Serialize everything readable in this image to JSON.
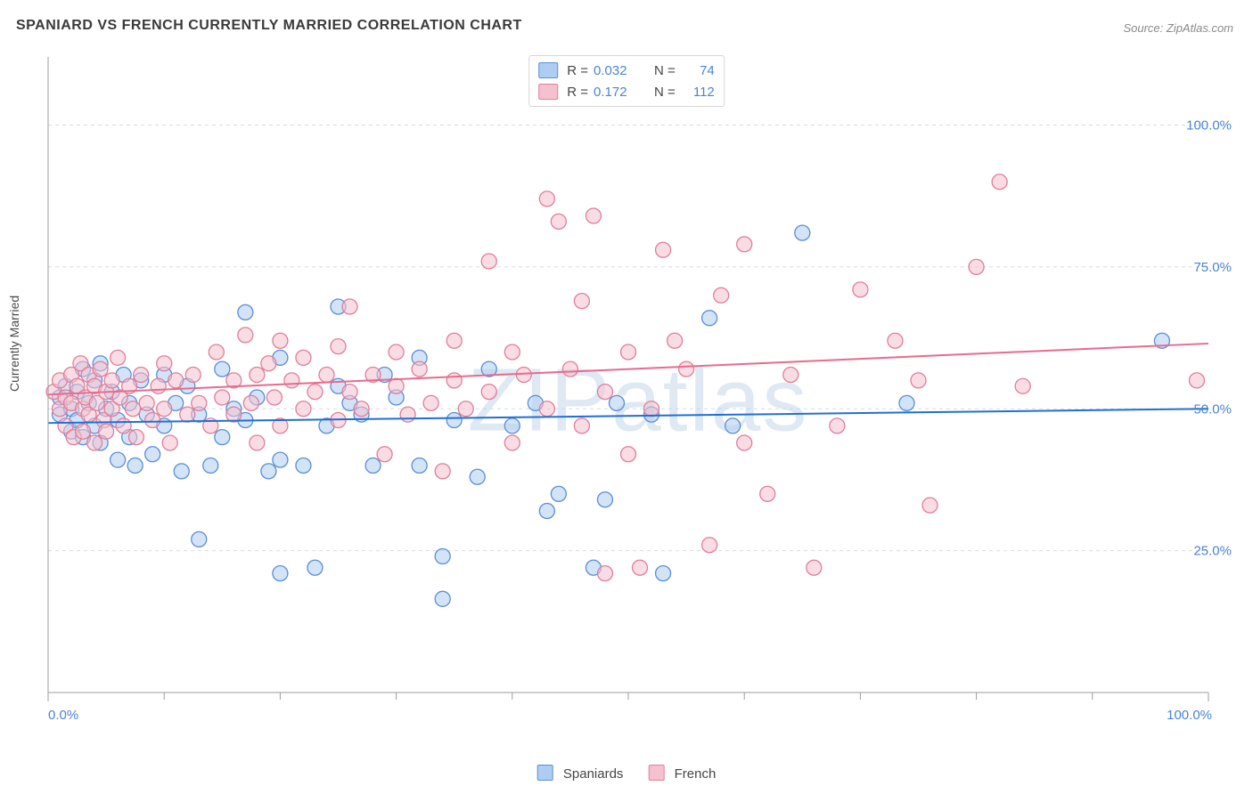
{
  "title": "SPANIARD VS FRENCH CURRENTLY MARRIED CORRELATION CHART",
  "source": "Source: ZipAtlas.com",
  "watermark": "ZIPatlas",
  "ylabel": "Currently Married",
  "chart": {
    "type": "scatter",
    "xlim": [
      0,
      100
    ],
    "ylim": [
      0,
      112
    ],
    "yticks": [
      25,
      50,
      75,
      100
    ],
    "ytick_labels": [
      "25.0%",
      "50.0%",
      "75.0%",
      "100.0%"
    ],
    "xticks_major": [
      0,
      100
    ],
    "xtick_major_labels": [
      "0.0%",
      "100.0%"
    ],
    "xticks_minor": [
      10,
      20,
      30,
      40,
      50,
      60,
      70,
      80,
      90
    ],
    "gridline_color": "#dcdcdc",
    "axis_color": "#9c9c9c",
    "marker_radius": 8.5,
    "marker_stroke_width": 1.3,
    "trend_line_width": 2,
    "series": [
      {
        "name": "Spaniards",
        "fill": "#aecdf2",
        "stroke": "#5a8fd6",
        "fill_opacity": 0.55,
        "line_color": "#1e6fd9",
        "trend": {
          "y_at_x0": 47.5,
          "y_at_x100": 50.0
        },
        "R": "0.032",
        "N": "74",
        "points": [
          [
            1,
            49
          ],
          [
            1,
            52
          ],
          [
            1.5,
            54
          ],
          [
            2,
            46
          ],
          [
            2,
            50
          ],
          [
            2.5,
            53
          ],
          [
            2.5,
            48
          ],
          [
            3,
            57
          ],
          [
            3,
            45
          ],
          [
            3.5,
            51
          ],
          [
            4,
            55
          ],
          [
            4,
            47
          ],
          [
            4.5,
            44
          ],
          [
            4.5,
            58
          ],
          [
            5,
            50
          ],
          [
            5.5,
            53
          ],
          [
            6,
            48
          ],
          [
            6,
            41
          ],
          [
            6.5,
            56
          ],
          [
            7,
            51
          ],
          [
            7,
            45
          ],
          [
            7.5,
            40
          ],
          [
            8,
            55
          ],
          [
            8.5,
            49
          ],
          [
            9,
            42
          ],
          [
            10,
            56
          ],
          [
            10,
            47
          ],
          [
            11,
            51
          ],
          [
            11.5,
            39
          ],
          [
            12,
            54
          ],
          [
            13,
            27
          ],
          [
            13,
            49
          ],
          [
            14,
            40
          ],
          [
            15,
            45
          ],
          [
            15,
            57
          ],
          [
            16,
            50
          ],
          [
            17,
            48
          ],
          [
            17,
            67
          ],
          [
            18,
            52
          ],
          [
            19,
            39
          ],
          [
            20,
            21
          ],
          [
            20,
            59
          ],
          [
            20,
            41
          ],
          [
            22,
            40
          ],
          [
            23,
            22
          ],
          [
            24,
            47
          ],
          [
            25,
            68
          ],
          [
            25,
            54
          ],
          [
            26,
            51
          ],
          [
            27,
            49
          ],
          [
            28,
            40
          ],
          [
            29,
            56
          ],
          [
            30,
            52
          ],
          [
            32,
            40
          ],
          [
            32,
            59
          ],
          [
            34,
            16.5
          ],
          [
            34,
            24
          ],
          [
            35,
            48
          ],
          [
            37,
            38
          ],
          [
            38,
            57
          ],
          [
            40,
            47
          ],
          [
            42,
            51
          ],
          [
            43,
            32
          ],
          [
            44,
            35
          ],
          [
            47,
            22
          ],
          [
            48,
            34
          ],
          [
            49,
            51
          ],
          [
            52,
            49
          ],
          [
            53,
            21
          ],
          [
            57,
            66
          ],
          [
            59,
            47
          ],
          [
            65,
            81
          ],
          [
            74,
            51
          ],
          [
            96,
            62
          ]
        ]
      },
      {
        "name": "French",
        "fill": "#f6c1ce",
        "stroke": "#e07f9a",
        "fill_opacity": 0.55,
        "line_color": "#e96a8f",
        "trend": {
          "y_at_x0": 52.5,
          "y_at_x100": 61.5
        },
        "R": "0.172",
        "N": "112",
        "points": [
          [
            0.5,
            53
          ],
          [
            1,
            50
          ],
          [
            1,
            55
          ],
          [
            1.5,
            52
          ],
          [
            1.5,
            47
          ],
          [
            2,
            56
          ],
          [
            2,
            51
          ],
          [
            2.2,
            45
          ],
          [
            2.5,
            54
          ],
          [
            2.8,
            58
          ],
          [
            3,
            50
          ],
          [
            3,
            46
          ],
          [
            3.2,
            52
          ],
          [
            3.5,
            56
          ],
          [
            3.5,
            49
          ],
          [
            4,
            44
          ],
          [
            4,
            54
          ],
          [
            4.2,
            51
          ],
          [
            4.5,
            57
          ],
          [
            4.8,
            48
          ],
          [
            5,
            53
          ],
          [
            5,
            46
          ],
          [
            5.5,
            55
          ],
          [
            5.5,
            50
          ],
          [
            6,
            59
          ],
          [
            6.2,
            52
          ],
          [
            6.5,
            47
          ],
          [
            7,
            54
          ],
          [
            7.3,
            50
          ],
          [
            7.6,
            45
          ],
          [
            8,
            56
          ],
          [
            8.5,
            51
          ],
          [
            9,
            48
          ],
          [
            9.5,
            54
          ],
          [
            10,
            58
          ],
          [
            10,
            50
          ],
          [
            10.5,
            44
          ],
          [
            11,
            55
          ],
          [
            12,
            49
          ],
          [
            12.5,
            56
          ],
          [
            13,
            51
          ],
          [
            14,
            47
          ],
          [
            14.5,
            60
          ],
          [
            15,
            52
          ],
          [
            16,
            55
          ],
          [
            16,
            49
          ],
          [
            17,
            63
          ],
          [
            17.5,
            51
          ],
          [
            18,
            56
          ],
          [
            18,
            44
          ],
          [
            19,
            58
          ],
          [
            19.5,
            52
          ],
          [
            20,
            47
          ],
          [
            20,
            62
          ],
          [
            21,
            55
          ],
          [
            22,
            50
          ],
          [
            22,
            59
          ],
          [
            23,
            53
          ],
          [
            24,
            56
          ],
          [
            25,
            48
          ],
          [
            25,
            61
          ],
          [
            26,
            68
          ],
          [
            26,
            53
          ],
          [
            27,
            50
          ],
          [
            28,
            56
          ],
          [
            29,
            42
          ],
          [
            30,
            54
          ],
          [
            30,
            60
          ],
          [
            31,
            49
          ],
          [
            32,
            57
          ],
          [
            33,
            51
          ],
          [
            34,
            39
          ],
          [
            35,
            55
          ],
          [
            35,
            62
          ],
          [
            36,
            50
          ],
          [
            38,
            53
          ],
          [
            38,
            76
          ],
          [
            40,
            44
          ],
          [
            40,
            60
          ],
          [
            41,
            56
          ],
          [
            43,
            50
          ],
          [
            43,
            87
          ],
          [
            44,
            83
          ],
          [
            45,
            57
          ],
          [
            46,
            47
          ],
          [
            46,
            69
          ],
          [
            47,
            84
          ],
          [
            48,
            53
          ],
          [
            48,
            21
          ],
          [
            50,
            60
          ],
          [
            50,
            42
          ],
          [
            51,
            22
          ],
          [
            52,
            50
          ],
          [
            53,
            78
          ],
          [
            54,
            62
          ],
          [
            55,
            57
          ],
          [
            57,
            26
          ],
          [
            58,
            70
          ],
          [
            60,
            79
          ],
          [
            60,
            44
          ],
          [
            62,
            35
          ],
          [
            64,
            56
          ],
          [
            66,
            22
          ],
          [
            68,
            47
          ],
          [
            70,
            71
          ],
          [
            73,
            62
          ],
          [
            75,
            55
          ],
          [
            76,
            33
          ],
          [
            80,
            75
          ],
          [
            82,
            90
          ],
          [
            84,
            54
          ],
          [
            99,
            55
          ]
        ]
      }
    ]
  },
  "legend_bottom": [
    {
      "label": "Spaniards",
      "swatch_fill": "#aecdf2",
      "swatch_stroke": "#5a8fd6"
    },
    {
      "label": "French",
      "swatch_fill": "#f6c1ce",
      "swatch_stroke": "#e07f9a"
    }
  ]
}
